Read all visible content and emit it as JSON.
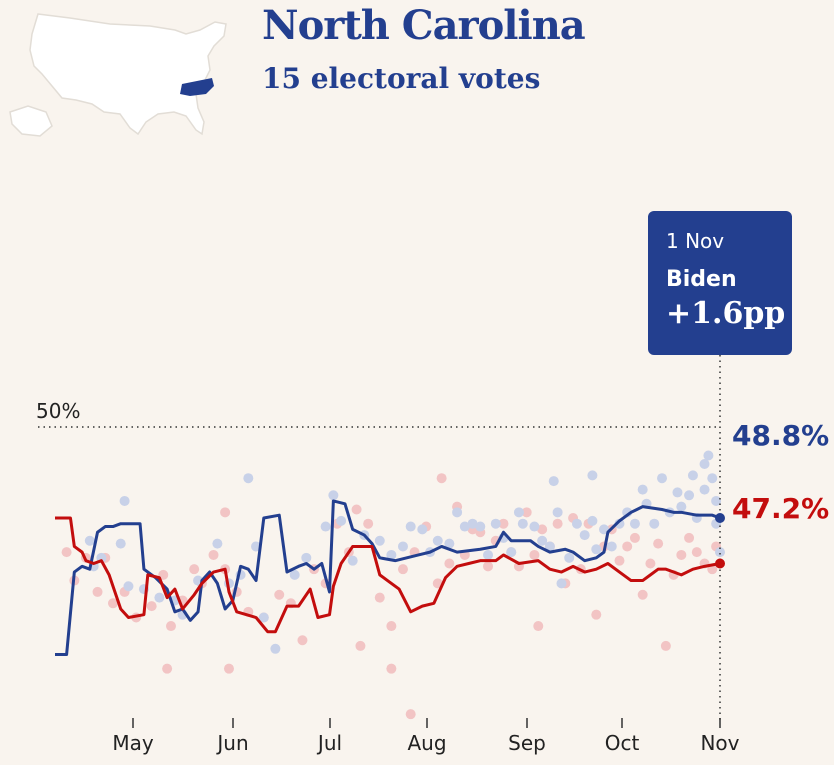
{
  "header": {
    "title": "North Carolina",
    "subtitle": "15 electoral votes"
  },
  "tooltip": {
    "date": "1 Nov",
    "candidate": "Biden",
    "margin": "+1.6pp"
  },
  "colors": {
    "biden": "#233f8f",
    "trump": "#c30d0d",
    "biden_dot": "#c8d1e8",
    "trump_dot": "#f2c4c4",
    "background": "#f9f4ee"
  },
  "chart_data": {
    "type": "line",
    "x_tick_labels": [
      "May",
      "Jun",
      "Jul",
      "Aug",
      "Sep",
      "Oct",
      "Nov"
    ],
    "xlim": [
      0,
      208
    ],
    "ylim": [
      41.8,
      52.6
    ],
    "reference_line": {
      "value": 50,
      "label": "50%"
    },
    "grid": false,
    "end_labels": [
      "48.8%",
      "47.2%"
    ],
    "series": [
      {
        "key": "biden",
        "points": [
          [
            0,
            44.0
          ],
          [
            3,
            44.0
          ],
          [
            5,
            46.9
          ],
          [
            7,
            47.1
          ],
          [
            9,
            47.0
          ],
          [
            11,
            48.3
          ],
          [
            13,
            48.5
          ],
          [
            15,
            48.5
          ],
          [
            17,
            48.6
          ],
          [
            22,
            48.6
          ],
          [
            23,
            47.0
          ],
          [
            26,
            46.7
          ],
          [
            29,
            46.3
          ],
          [
            31,
            45.5
          ],
          [
            33,
            45.6
          ],
          [
            35,
            45.2
          ],
          [
            37,
            45.5
          ],
          [
            38,
            46.6
          ],
          [
            40,
            46.9
          ],
          [
            42,
            46.5
          ],
          [
            44,
            45.6
          ],
          [
            46,
            45.9
          ],
          [
            48,
            47.1
          ],
          [
            50,
            47.0
          ],
          [
            52,
            46.6
          ],
          [
            54,
            48.8
          ],
          [
            58,
            48.9
          ],
          [
            60,
            46.9
          ],
          [
            63,
            47.1
          ],
          [
            65,
            47.2
          ],
          [
            67,
            47.0
          ],
          [
            69,
            47.2
          ],
          [
            71,
            46.2
          ],
          [
            72,
            49.4
          ],
          [
            75,
            49.3
          ],
          [
            77,
            48.4
          ],
          [
            80,
            48.2
          ],
          [
            82,
            47.9
          ],
          [
            84,
            47.4
          ],
          [
            88,
            47.3
          ],
          [
            94,
            47.5
          ],
          [
            97,
            47.6
          ],
          [
            100,
            47.8
          ],
          [
            104,
            47.6
          ],
          [
            110,
            47.7
          ],
          [
            114,
            47.8
          ],
          [
            116,
            48.3
          ],
          [
            118,
            48.0
          ],
          [
            123,
            48.0
          ],
          [
            125,
            47.8
          ],
          [
            128,
            47.6
          ],
          [
            132,
            47.7
          ],
          [
            134,
            47.6
          ],
          [
            137,
            47.3
          ],
          [
            140,
            47.4
          ],
          [
            142,
            47.6
          ],
          [
            143,
            48.3
          ],
          [
            146,
            48.7
          ],
          [
            149,
            49.0
          ],
          [
            152,
            49.2
          ],
          [
            157,
            49.1
          ],
          [
            160,
            49.0
          ],
          [
            162,
            49.0
          ],
          [
            166,
            48.9
          ],
          [
            170,
            48.9
          ],
          [
            172,
            48.8
          ]
        ]
      },
      {
        "key": "trump",
        "points": [
          [
            0,
            48.8
          ],
          [
            4,
            48.8
          ],
          [
            5,
            47.8
          ],
          [
            7,
            47.6
          ],
          [
            8,
            47.3
          ],
          [
            10,
            47.2
          ],
          [
            12,
            47.3
          ],
          [
            14,
            46.8
          ],
          [
            16,
            46.0
          ],
          [
            17,
            45.6
          ],
          [
            19,
            45.3
          ],
          [
            23,
            45.4
          ],
          [
            24,
            46.8
          ],
          [
            27,
            46.7
          ],
          [
            29,
            46.0
          ],
          [
            31,
            46.3
          ],
          [
            33,
            45.6
          ],
          [
            36,
            46.1
          ],
          [
            38,
            46.5
          ],
          [
            41,
            46.9
          ],
          [
            44,
            47.0
          ],
          [
            45,
            46.2
          ],
          [
            47,
            45.5
          ],
          [
            52,
            45.3
          ],
          [
            55,
            44.8
          ],
          [
            57,
            44.8
          ],
          [
            60,
            45.7
          ],
          [
            63,
            45.7
          ],
          [
            66,
            46.3
          ],
          [
            68,
            45.3
          ],
          [
            71,
            45.4
          ],
          [
            72,
            46.4
          ],
          [
            74,
            47.2
          ],
          [
            77,
            47.8
          ],
          [
            82,
            47.8
          ],
          [
            84,
            46.8
          ],
          [
            86,
            46.6
          ],
          [
            89,
            46.3
          ],
          [
            92,
            45.5
          ],
          [
            95,
            45.7
          ],
          [
            98,
            45.8
          ],
          [
            101,
            46.7
          ],
          [
            104,
            47.1
          ],
          [
            107,
            47.2
          ],
          [
            110,
            47.3
          ],
          [
            114,
            47.3
          ],
          [
            116,
            47.5
          ],
          [
            120,
            47.2
          ],
          [
            125,
            47.3
          ],
          [
            128,
            47.0
          ],
          [
            131,
            46.9
          ],
          [
            134,
            47.1
          ],
          [
            137,
            46.9
          ],
          [
            140,
            47.0
          ],
          [
            143,
            47.2
          ],
          [
            146,
            46.9
          ],
          [
            149,
            46.6
          ],
          [
            152,
            46.6
          ],
          [
            154,
            46.8
          ],
          [
            156,
            47.0
          ],
          [
            158,
            47.0
          ],
          [
            160,
            46.9
          ],
          [
            162,
            46.8
          ],
          [
            165,
            47.0
          ],
          [
            168,
            47.1
          ],
          [
            172,
            47.2
          ]
        ]
      }
    ],
    "polls": {
      "biden": [
        [
          9,
          48.0
        ],
        [
          10,
          47.1
        ],
        [
          12,
          47.4
        ],
        [
          17,
          47.9
        ],
        [
          19,
          46.4
        ],
        [
          23,
          46.3
        ],
        [
          27,
          46.0
        ],
        [
          31,
          45.9
        ],
        [
          33,
          45.4
        ],
        [
          37,
          46.6
        ],
        [
          42,
          47.9
        ],
        [
          45,
          46.5
        ],
        [
          48,
          46.8
        ],
        [
          52,
          47.8
        ],
        [
          54,
          45.3
        ],
        [
          57,
          44.2
        ],
        [
          62,
          46.8
        ],
        [
          65,
          47.4
        ],
        [
          70,
          48.5
        ],
        [
          72,
          49.6
        ],
        [
          74,
          48.7
        ],
        [
          77,
          47.3
        ],
        [
          80,
          48.2
        ],
        [
          84,
          48.0
        ],
        [
          87,
          47.5
        ],
        [
          90,
          47.8
        ],
        [
          92,
          48.5
        ],
        [
          95,
          48.4
        ],
        [
          97,
          47.6
        ],
        [
          99,
          48.0
        ],
        [
          102,
          47.9
        ],
        [
          104,
          49.0
        ],
        [
          106,
          48.5
        ],
        [
          108,
          48.6
        ],
        [
          110,
          48.5
        ],
        [
          112,
          47.5
        ],
        [
          114,
          48.6
        ],
        [
          116,
          48.1
        ],
        [
          118,
          47.6
        ],
        [
          120,
          49.0
        ],
        [
          121,
          48.6
        ],
        [
          124,
          48.5
        ],
        [
          126,
          48.0
        ],
        [
          128,
          47.8
        ],
        [
          130,
          49.0
        ],
        [
          131,
          46.5
        ],
        [
          133,
          47.4
        ],
        [
          135,
          48.6
        ],
        [
          137,
          48.2
        ],
        [
          139,
          48.7
        ],
        [
          140,
          47.7
        ],
        [
          142,
          48.4
        ],
        [
          144,
          47.8
        ],
        [
          146,
          48.6
        ],
        [
          148,
          49.0
        ],
        [
          150,
          48.6
        ],
        [
          152,
          49.8
        ],
        [
          153,
          49.3
        ],
        [
          155,
          48.6
        ],
        [
          157,
          50.2
        ],
        [
          159,
          49.0
        ],
        [
          161,
          49.7
        ],
        [
          162,
          49.2
        ],
        [
          164,
          49.6
        ],
        [
          165,
          50.3
        ],
        [
          166,
          48.8
        ],
        [
          168,
          50.7
        ],
        [
          169,
          51.0
        ],
        [
          170,
          50.2
        ],
        [
          171,
          48.6
        ],
        [
          172,
          47.6
        ],
        [
          171,
          49.4
        ],
        [
          168,
          49.8
        ],
        [
          139,
          50.3
        ],
        [
          129,
          50.1
        ],
        [
          50,
          50.2
        ],
        [
          18,
          49.4
        ]
      ],
      "trump": [
        [
          3,
          47.6
        ],
        [
          5,
          46.6
        ],
        [
          8,
          47.4
        ],
        [
          11,
          46.2
        ],
        [
          13,
          47.4
        ],
        [
          15,
          45.8
        ],
        [
          18,
          46.2
        ],
        [
          21,
          45.3
        ],
        [
          25,
          45.7
        ],
        [
          28,
          46.8
        ],
        [
          30,
          45.0
        ],
        [
          33,
          45.9
        ],
        [
          36,
          47.0
        ],
        [
          38,
          46.5
        ],
        [
          41,
          47.5
        ],
        [
          44,
          47.0
        ],
        [
          47,
          46.2
        ],
        [
          50,
          45.5
        ],
        [
          54,
          45.3
        ],
        [
          58,
          46.1
        ],
        [
          61,
          45.8
        ],
        [
          64,
          44.5
        ],
        [
          67,
          47.0
        ],
        [
          70,
          46.5
        ],
        [
          73,
          48.6
        ],
        [
          76,
          47.6
        ],
        [
          78,
          49.1
        ],
        [
          81,
          48.6
        ],
        [
          84,
          46.0
        ],
        [
          87,
          45.0
        ],
        [
          90,
          47.0
        ],
        [
          93,
          47.6
        ],
        [
          96,
          48.5
        ],
        [
          99,
          46.5
        ],
        [
          102,
          47.2
        ],
        [
          104,
          49.2
        ],
        [
          106,
          47.5
        ],
        [
          108,
          48.4
        ],
        [
          110,
          48.3
        ],
        [
          112,
          47.1
        ],
        [
          114,
          48.0
        ],
        [
          116,
          48.6
        ],
        [
          118,
          47.6
        ],
        [
          120,
          47.1
        ],
        [
          122,
          49.0
        ],
        [
          124,
          47.5
        ],
        [
          126,
          48.4
        ],
        [
          128,
          47.8
        ],
        [
          130,
          48.6
        ],
        [
          132,
          46.5
        ],
        [
          134,
          48.8
        ],
        [
          136,
          47.0
        ],
        [
          138,
          48.6
        ],
        [
          140,
          45.4
        ],
        [
          142,
          47.8
        ],
        [
          144,
          48.4
        ],
        [
          146,
          47.3
        ],
        [
          148,
          47.8
        ],
        [
          150,
          48.1
        ],
        [
          152,
          46.1
        ],
        [
          154,
          47.2
        ],
        [
          156,
          47.9
        ],
        [
          158,
          44.3
        ],
        [
          160,
          46.8
        ],
        [
          162,
          47.5
        ],
        [
          164,
          48.1
        ],
        [
          166,
          47.6
        ],
        [
          168,
          47.2
        ],
        [
          170,
          47.0
        ],
        [
          171,
          47.8
        ],
        [
          44,
          49.0
        ],
        [
          29,
          43.5
        ],
        [
          45,
          43.5
        ],
        [
          87,
          43.5
        ],
        [
          79,
          44.3
        ],
        [
          92,
          41.9
        ],
        [
          125,
          45.0
        ],
        [
          100,
          50.2
        ]
      ]
    }
  }
}
